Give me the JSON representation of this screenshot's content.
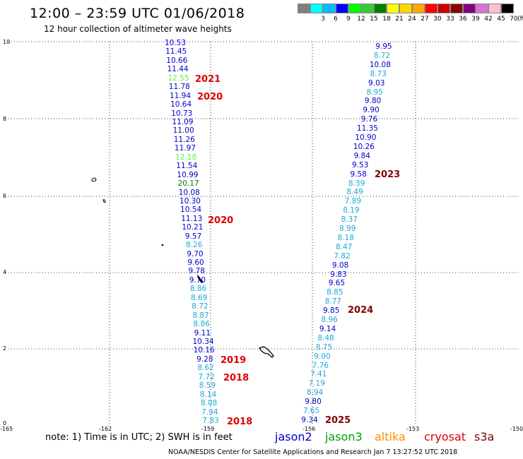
{
  "header": {
    "title": "12:00 – 23:59 UTC 01/06/2018",
    "subtitle": "12 hour collection of altimeter wave heights"
  },
  "legend": {
    "unit": "(ft)",
    "swatches": [
      {
        "color": "#808080",
        "label": ""
      },
      {
        "color": "#00ffff",
        "label": "3"
      },
      {
        "color": "#00bfff",
        "label": "6"
      },
      {
        "color": "#0000ff",
        "label": "9"
      },
      {
        "color": "#00ff00",
        "label": "12"
      },
      {
        "color": "#32cd32",
        "label": "15"
      },
      {
        "color": "#008000",
        "label": "18"
      },
      {
        "color": "#ffff00",
        "label": "21"
      },
      {
        "color": "#ffd700",
        "label": "24"
      },
      {
        "color": "#ffa500",
        "label": "27"
      },
      {
        "color": "#ff0000",
        "label": "30"
      },
      {
        "color": "#cc0000",
        "label": "33"
      },
      {
        "color": "#8b0000",
        "label": "36"
      },
      {
        "color": "#800080",
        "label": "39"
      },
      {
        "color": "#da70d6",
        "label": "42"
      },
      {
        "color": "#ffc0cb",
        "label": "45"
      },
      {
        "color": "#000000",
        "label": "70"
      }
    ]
  },
  "axes": {
    "y_ticks": [
      "10",
      "8",
      "6",
      "4",
      "2",
      "0"
    ],
    "x_ticks": [
      "-165",
      "-162",
      "-159",
      "-156",
      "-153",
      "-150"
    ]
  },
  "colors": {
    "jason2": "#0000cc",
    "jason3": "#00a000",
    "altika": "#ff8c00",
    "cryosat": "#dd0000",
    "s3a": "#800000",
    "cyan_values": "#1fa8d8",
    "green_values": "#66ee44",
    "dark_green_values": "#008000"
  },
  "track_left": [
    {
      "v": "10.53",
      "c": "jason2"
    },
    {
      "v": "11.45",
      "c": "jason2"
    },
    {
      "v": "10.66",
      "c": "jason2"
    },
    {
      "v": "11.44",
      "c": "jason2"
    },
    {
      "v": "12.55",
      "c": "green_values"
    },
    {
      "v": "11.78",
      "c": "jason2"
    },
    {
      "v": "11.94",
      "c": "jason2"
    },
    {
      "v": "10.64",
      "c": "jason2"
    },
    {
      "v": "10.73",
      "c": "jason2"
    },
    {
      "v": "11.09",
      "c": "jason2"
    },
    {
      "v": "11.00",
      "c": "jason2"
    },
    {
      "v": "11.26",
      "c": "jason2"
    },
    {
      "v": "11.97",
      "c": "jason2"
    },
    {
      "v": "12.18",
      "c": "green_values"
    },
    {
      "v": "11.54",
      "c": "jason2"
    },
    {
      "v": "10.99",
      "c": "jason2"
    },
    {
      "v": "20.17",
      "c": "dark_green_values"
    },
    {
      "v": "10.08",
      "c": "jason2"
    },
    {
      "v": "10.30",
      "c": "jason2"
    },
    {
      "v": "10.54",
      "c": "jason2"
    },
    {
      "v": "11.13",
      "c": "jason2"
    },
    {
      "v": "10.21",
      "c": "jason2"
    },
    {
      "v": "9.57",
      "c": "jason2"
    },
    {
      "v": "8.26",
      "c": "cyan_values"
    },
    {
      "v": "9.70",
      "c": "jason2"
    },
    {
      "v": "9.60",
      "c": "jason2"
    },
    {
      "v": "9.78",
      "c": "jason2"
    },
    {
      "v": "9.70",
      "c": "jason2"
    },
    {
      "v": "8.86",
      "c": "cyan_values"
    },
    {
      "v": "8.69",
      "c": "cyan_values"
    },
    {
      "v": "8.72",
      "c": "cyan_values"
    },
    {
      "v": "8.87",
      "c": "cyan_values"
    },
    {
      "v": "8.86",
      "c": "cyan_values"
    },
    {
      "v": "9.11",
      "c": "jason2"
    },
    {
      "v": "10.34",
      "c": "jason2"
    },
    {
      "v": "10.16",
      "c": "jason2"
    },
    {
      "v": "9.28",
      "c": "jason2"
    },
    {
      "v": "8.62",
      "c": "cyan_values"
    },
    {
      "v": "7.72",
      "c": "cyan_values"
    },
    {
      "v": "8.59",
      "c": "cyan_values"
    },
    {
      "v": "8.14",
      "c": "cyan_values"
    },
    {
      "v": "8.08",
      "c": "cyan_values"
    },
    {
      "v": "7.94",
      "c": "cyan_values"
    },
    {
      "v": "7.83",
      "c": "cyan_values"
    }
  ],
  "track_right": [
    {
      "v": "9.95",
      "c": "jason2"
    },
    {
      "v": "8.72",
      "c": "cyan_values"
    },
    {
      "v": "10.08",
      "c": "jason2"
    },
    {
      "v": "8.73",
      "c": "cyan_values"
    },
    {
      "v": "9.03",
      "c": "jason2"
    },
    {
      "v": "8.95",
      "c": "cyan_values"
    },
    {
      "v": "9.80",
      "c": "jason2"
    },
    {
      "v": "9.90",
      "c": "jason2"
    },
    {
      "v": "9.76",
      "c": "jason2"
    },
    {
      "v": "11.35",
      "c": "jason2"
    },
    {
      "v": "10.90",
      "c": "jason2"
    },
    {
      "v": "10.26",
      "c": "jason2"
    },
    {
      "v": "9.84",
      "c": "jason2"
    },
    {
      "v": "9.53",
      "c": "jason2"
    },
    {
      "v": "9.58",
      "c": "jason2"
    },
    {
      "v": "8.39",
      "c": "cyan_values"
    },
    {
      "v": "8.49",
      "c": "cyan_values"
    },
    {
      "v": "7.89",
      "c": "cyan_values"
    },
    {
      "v": "8.19",
      "c": "cyan_values"
    },
    {
      "v": "8.37",
      "c": "cyan_values"
    },
    {
      "v": "8.99",
      "c": "cyan_values"
    },
    {
      "v": "8.18",
      "c": "cyan_values"
    },
    {
      "v": "8.47",
      "c": "cyan_values"
    },
    {
      "v": "7.82",
      "c": "cyan_values"
    },
    {
      "v": "9.08",
      "c": "jason2"
    },
    {
      "v": "9.83",
      "c": "jason2"
    },
    {
      "v": "9.65",
      "c": "jason2"
    },
    {
      "v": "8.85",
      "c": "cyan_values"
    },
    {
      "v": "8.77",
      "c": "cyan_values"
    },
    {
      "v": "9.85",
      "c": "jason2"
    },
    {
      "v": "8.96",
      "c": "cyan_values"
    },
    {
      "v": "9.14",
      "c": "jason2"
    },
    {
      "v": "8.48",
      "c": "cyan_values"
    },
    {
      "v": "8.75",
      "c": "cyan_values"
    },
    {
      "v": "9.00",
      "c": "cyan_values"
    },
    {
      "v": "7.76",
      "c": "cyan_values"
    },
    {
      "v": "7.41",
      "c": "cyan_values"
    },
    {
      "v": "7.19",
      "c": "cyan_values"
    },
    {
      "v": "8.94",
      "c": "cyan_values"
    },
    {
      "v": "9.80",
      "c": "jason2"
    },
    {
      "v": "7.65",
      "c": "cyan_values"
    },
    {
      "v": "9.34",
      "c": "jason2"
    }
  ],
  "time_labels": [
    {
      "text": "2021",
      "color": "cryosat"
    },
    {
      "text": "2020",
      "color": "cryosat"
    },
    {
      "text": "2020",
      "color": "cryosat"
    },
    {
      "text": "2019",
      "color": "cryosat"
    },
    {
      "text": "2018",
      "color": "cryosat"
    },
    {
      "text": "2018",
      "color": "cryosat"
    },
    {
      "text": "2023",
      "color": "s3a"
    },
    {
      "text": "2024",
      "color": "s3a"
    },
    {
      "text": "2025",
      "color": "s3a"
    }
  ],
  "footer": {
    "note": "note: 1) Time is in UTC; 2) SWH is in feet",
    "satellites": [
      {
        "name": "jason2",
        "color": "jason2"
      },
      {
        "name": "jason3",
        "color": "jason3"
      },
      {
        "name": "altika",
        "color": "altika"
      },
      {
        "name": "cryosat",
        "color": "cryosat"
      },
      {
        "name": "s3a",
        "color": "s3a"
      }
    ],
    "credit": "NOAA/NESDIS Center for Satellite Applications and Research   Jan  7 13:27:52 UTC 2018"
  }
}
